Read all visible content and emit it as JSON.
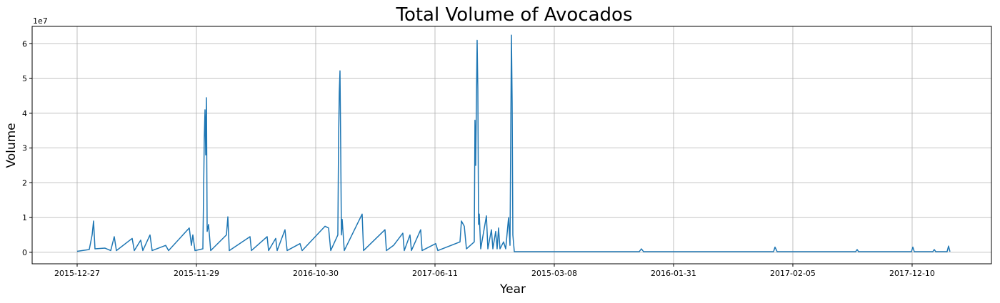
{
  "chart_data": {
    "type": "line",
    "title": "Total Volume of Avocados",
    "x_label": "Year",
    "y_label": "Volume",
    "y_offset_label": "1e7",
    "color": "#1f77b4",
    "grid": true,
    "xlim": [
      -943,
      19162
    ],
    "ylim": [
      -3300000,
      65000000
    ],
    "xticks": [
      {
        "value": 0,
        "label": "2015-12-27"
      },
      {
        "value": 2500,
        "label": "2015-11-29"
      },
      {
        "value": 5000,
        "label": "2016-10-30"
      },
      {
        "value": 7500,
        "label": "2017-06-11"
      },
      {
        "value": 10000,
        "label": "2015-03-08"
      },
      {
        "value": 12500,
        "label": "2016-01-31"
      },
      {
        "value": 15000,
        "label": "2017-02-05"
      },
      {
        "value": 17500,
        "label": "2017-12-10"
      }
    ],
    "yticks": [
      0,
      {
        "value": 10000000,
        "label": "1"
      },
      {
        "value": 20000000,
        "label": "2"
      },
      {
        "value": 30000000,
        "label": "3"
      },
      {
        "value": 40000000,
        "label": "4"
      },
      {
        "value": 50000000,
        "label": "5"
      },
      {
        "value": 60000000,
        "label": "6"
      }
    ],
    "x": [
      0,
      254,
      314,
      344,
      374,
      584,
      704,
      778,
      823,
      1153,
      1198,
      1332,
      1377,
      1527,
      1572,
      1856,
      1916,
      2350,
      2395,
      2425,
      2470,
      2635,
      2665,
      2680,
      2695,
      2710,
      2725,
      2754,
      2799,
      3129,
      3159,
      3189,
      3623,
      3653,
      3982,
      4012,
      4162,
      4192,
      4356,
      4401,
      4671,
      4716,
      5195,
      5270,
      5315,
      5464,
      5479,
      5494,
      5509,
      5524,
      5539,
      5554,
      5599,
      5973,
      6003,
      6452,
      6482,
      6632,
      6826,
      6856,
      6976,
      7006,
      7200,
      7230,
      7515,
      7560,
      8024,
      8054,
      8114,
      8159,
      8323,
      8338,
      8353,
      8383,
      8398,
      8413,
      8428,
      8458,
      8578,
      8608,
      8683,
      8713,
      8772,
      8802,
      8832,
      8862,
      8937,
      8982,
      9042,
      9072,
      9102,
      9117,
      9132,
      9162,
      11781,
      11826,
      11871,
      14596,
      14626,
      14671,
      16317,
      16347,
      16377,
      17485,
      17515,
      17545,
      17934,
      17964,
      17994,
      18233,
      18263,
      18293
    ],
    "values": [
      300000,
      800000,
      5000000,
      9000000,
      1000000,
      1200000,
      500000,
      4500000,
      500000,
      4000000,
      500000,
      3500000,
      500000,
      5000000,
      500000,
      2000000,
      500000,
      7000000,
      2000000,
      5000000,
      500000,
      1000000,
      33000000,
      41000000,
      28000000,
      44500000,
      6000000,
      8000000,
      500000,
      5000000,
      10200000,
      500000,
      4500000,
      500000,
      4500000,
      500000,
      4000000,
      500000,
      6500000,
      500000,
      2500000,
      500000,
      7500000,
      7000000,
      500000,
      5000000,
      32000000,
      46000000,
      52200000,
      30000000,
      5000000,
      9500000,
      500000,
      11000000,
      500000,
      6500000,
      500000,
      2000000,
      5500000,
      500000,
      5000000,
      500000,
      6500000,
      500000,
      2500000,
      500000,
      3000000,
      9000000,
      7500000,
      1000000,
      3000000,
      38000000,
      25000000,
      61000000,
      47000000,
      8000000,
      11000000,
      1000000,
      10500000,
      1000000,
      6500000,
      1000000,
      6000000,
      1000000,
      7000000,
      1000000,
      3000000,
      1000000,
      10000000,
      2000000,
      62500000,
      43000000,
      5000000,
      200000,
      200000,
      1000000,
      200000,
      200000,
      1500000,
      200000,
      200000,
      800000,
      200000,
      200000,
      1500000,
      200000,
      200000,
      800000,
      200000,
      200000,
      1800000,
      200000
    ]
  }
}
